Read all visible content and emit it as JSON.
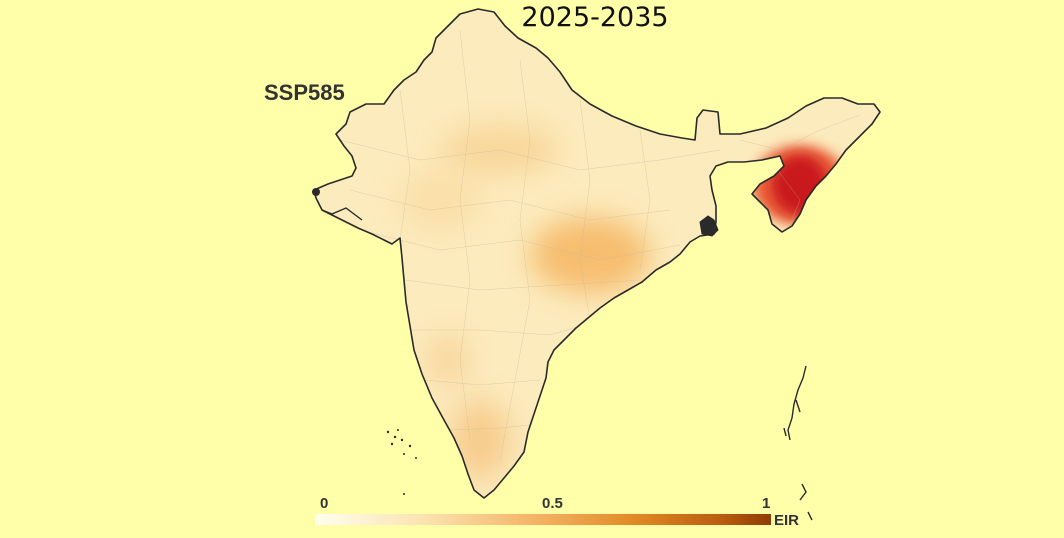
{
  "map": {
    "period": "2025-2035",
    "scenario": "SSP585",
    "legend": {
      "min_label": "0",
      "mid_label": "0.5",
      "max_label": "1",
      "unit": "EIR",
      "range": [
        0,
        1
      ],
      "colors": [
        "#fffff0",
        "#fbe1ad",
        "#f3b060",
        "#e08a25",
        "#b75a0f",
        "#8c3c05"
      ]
    },
    "background_color": "#ffffaa",
    "land_base_color": "#fbe8b4",
    "hotspot_color": "#c8161e",
    "boundary_color": "#2a2a2a"
  }
}
